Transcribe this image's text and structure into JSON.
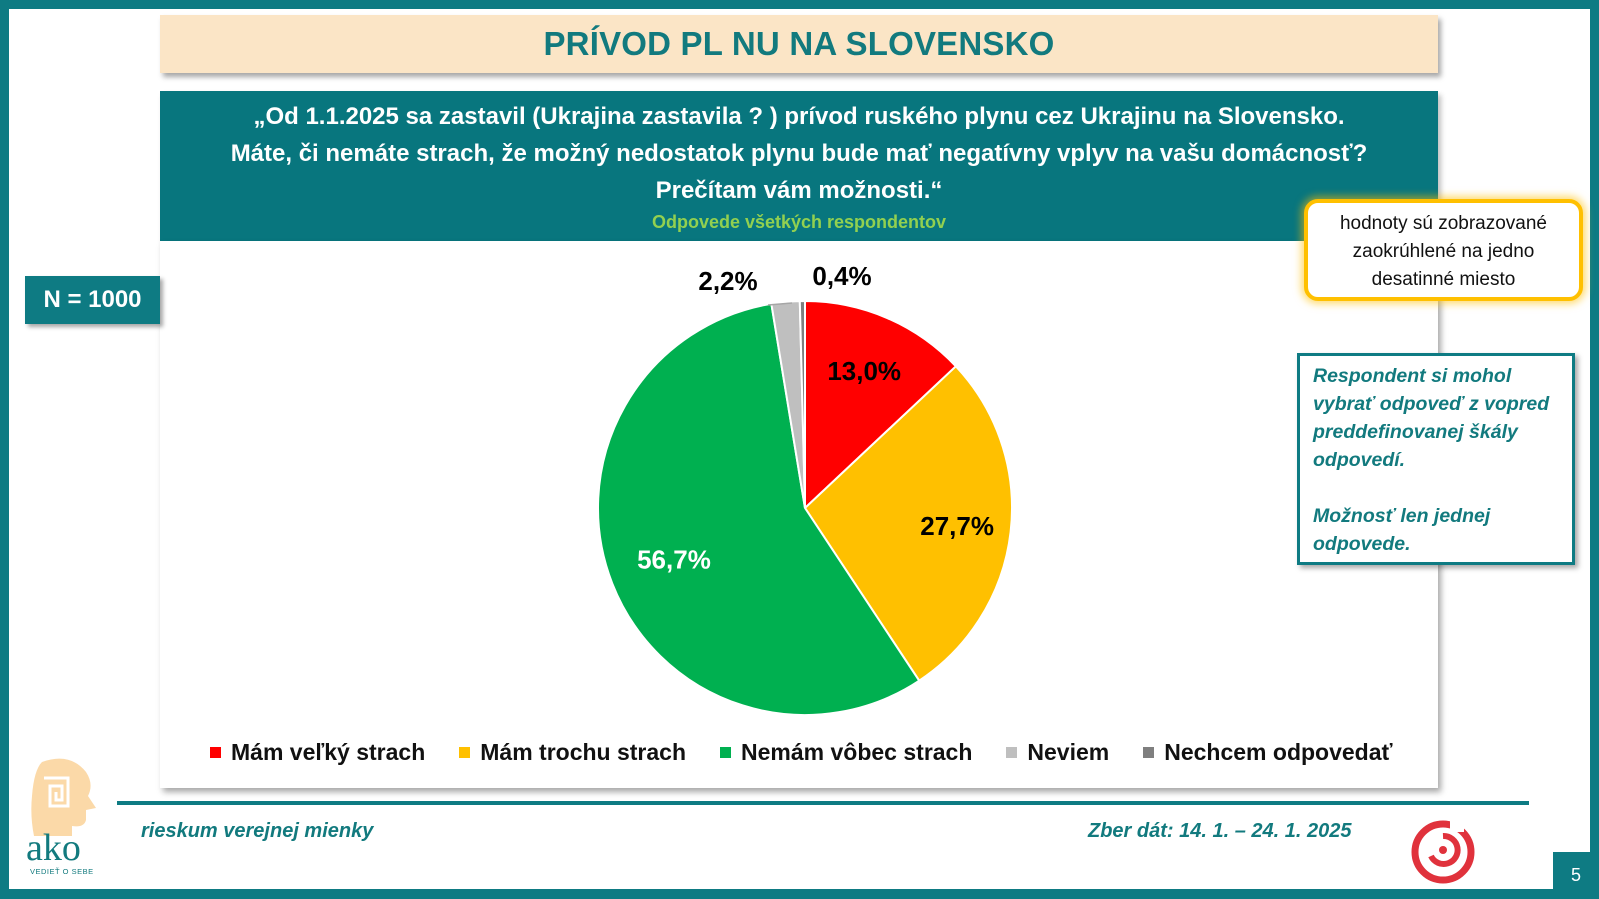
{
  "header": {
    "title": "PRÍVOD PL  NU NA SLOVENSKO"
  },
  "question": {
    "lines": [
      "„Od 1.1.2025 sa zastavil (Ukrajina zastavila ? ) prívod ruského plynu cez Ukrajinu na Slovensko.",
      "Máte, či nemáte strach, že možný nedostatok plynu bude mať negatívny vplyv na vašu domácnosť?",
      "Prečítam vám možnosti.“"
    ],
    "subtitle": "Odpovede všetkých respondentov"
  },
  "sample": {
    "label": "N = 1000"
  },
  "notes": {
    "rounding": [
      "hodnoty sú zobrazované",
      "zaokrúhlené na jedno",
      "desatinné miesto"
    ],
    "scale_p1": "Respondent si mohol vybrať odpoveď z vopred preddefinovanej škály odpovedí.",
    "scale_p2": "Možnosť len jednej odpovede."
  },
  "chart_data": {
    "type": "pie",
    "title": "PRÍVOD PL  NU NA SLOVENSKO",
    "categories": [
      "Mám veľký strach",
      "Mám trochu strach",
      "Nemám vôbec strach",
      "Neviem",
      "Nechcem odpovedať"
    ],
    "values": [
      13.0,
      27.7,
      56.7,
      2.2,
      0.4
    ],
    "value_labels": [
      "13,0%",
      "27,7%",
      "56,7%",
      "2,2%",
      "0,4%"
    ],
    "colors": [
      "#ff0000",
      "#ffc000",
      "#00b050",
      "#bfbfbf",
      "#7f7f7f"
    ],
    "label_colors": [
      "#000000",
      "#000000",
      "#ffffff",
      "#000000",
      "#000000"
    ],
    "legend_position": "bottom",
    "start_angle_deg": 0,
    "direction": "clockwise"
  },
  "footer": {
    "left": "rieskum verejnej mienky",
    "right": "Zber dát: 14. 1. – 24. 1. 2025",
    "page": "5"
  },
  "logo": {
    "text": "ako",
    "tagline": "VEDIEŤ O SEBE"
  }
}
